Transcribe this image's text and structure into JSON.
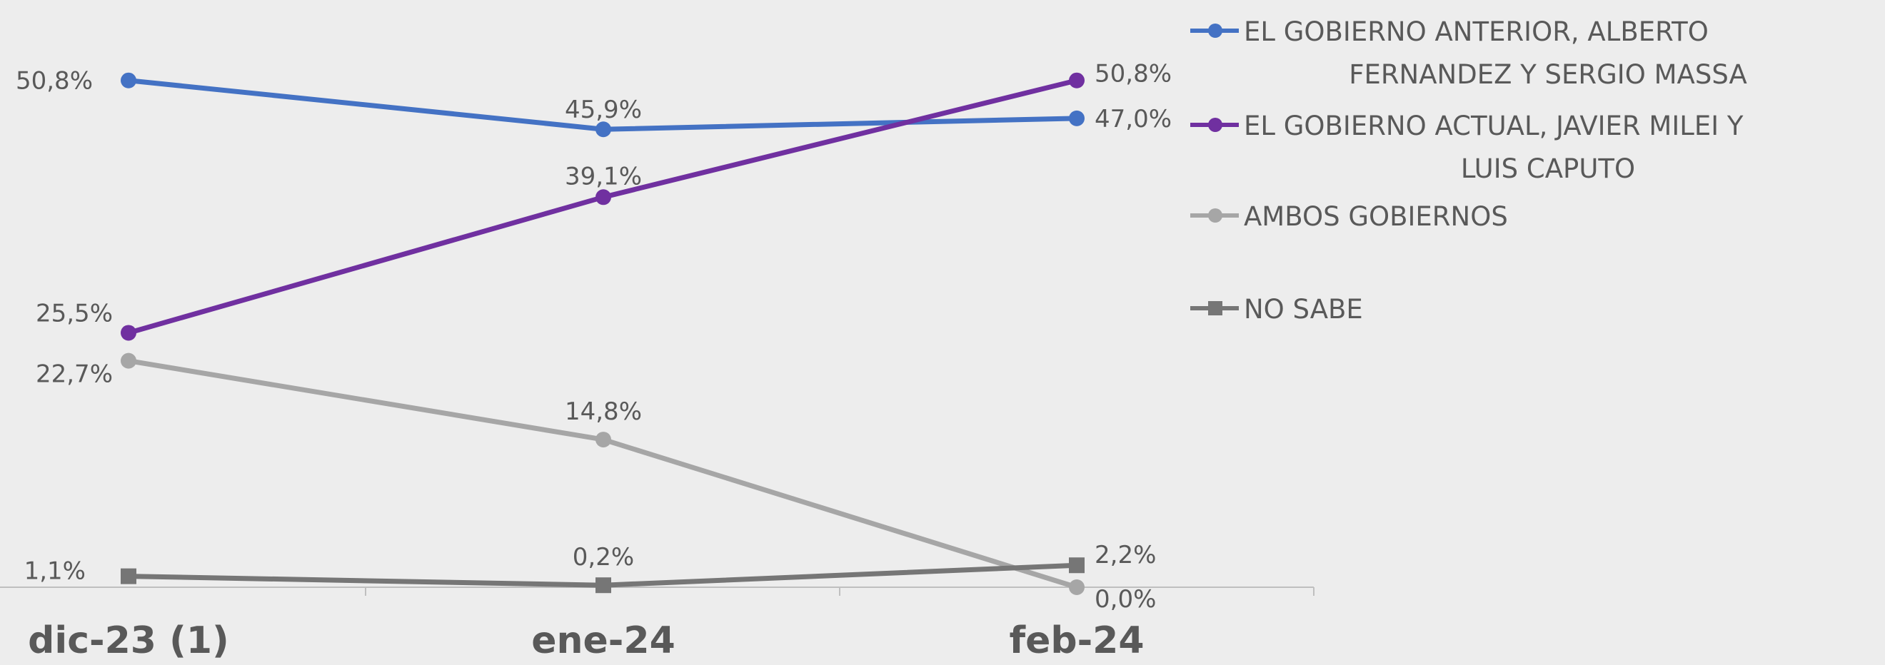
{
  "chart_data": {
    "type": "line",
    "categories": [
      "dic-23 (1)",
      "ene-24",
      "feb-24"
    ],
    "ylim": [
      0,
      55
    ],
    "grid": false,
    "legend_position": "right",
    "series": [
      {
        "name": "EL GOBIERNO ANTERIOR, ALBERTO FERNANDEZ Y SERGIO MASSA",
        "legend_lines": [
          "EL GOBIERNO ANTERIOR, ALBERTO",
          "FERNANDEZ Y SERGIO MASSA"
        ],
        "color": "#4472c4",
        "marker": "circle",
        "values": [
          50.8,
          45.9,
          47.0
        ],
        "labels": [
          "50,8%",
          "45,9%",
          "47,0%"
        ]
      },
      {
        "name": "EL GOBIERNO ACTUAL, JAVIER MILEI Y LUIS CAPUTO",
        "legend_lines": [
          "EL GOBIERNO ACTUAL, JAVIER MILEI Y",
          "LUIS CAPUTO"
        ],
        "color": "#7030a0",
        "marker": "circle",
        "values": [
          25.5,
          39.1,
          50.8
        ],
        "labels": [
          "25,5%",
          "39,1%",
          "50,8%"
        ]
      },
      {
        "name": "AMBOS GOBIERNOS",
        "legend_lines": [
          "AMBOS GOBIERNOS"
        ],
        "color": "#a6a6a6",
        "marker": "circle",
        "values": [
          22.7,
          14.8,
          0.0
        ],
        "labels": [
          "22,7%",
          "14,8%",
          "0,0%"
        ]
      },
      {
        "name": "NO SABE",
        "legend_lines": [
          "NO SABE"
        ],
        "color": "#767676",
        "marker": "square",
        "values": [
          1.1,
          0.2,
          2.2
        ],
        "labels": [
          "1,1%",
          "0,2%",
          "2,2%"
        ]
      }
    ]
  }
}
